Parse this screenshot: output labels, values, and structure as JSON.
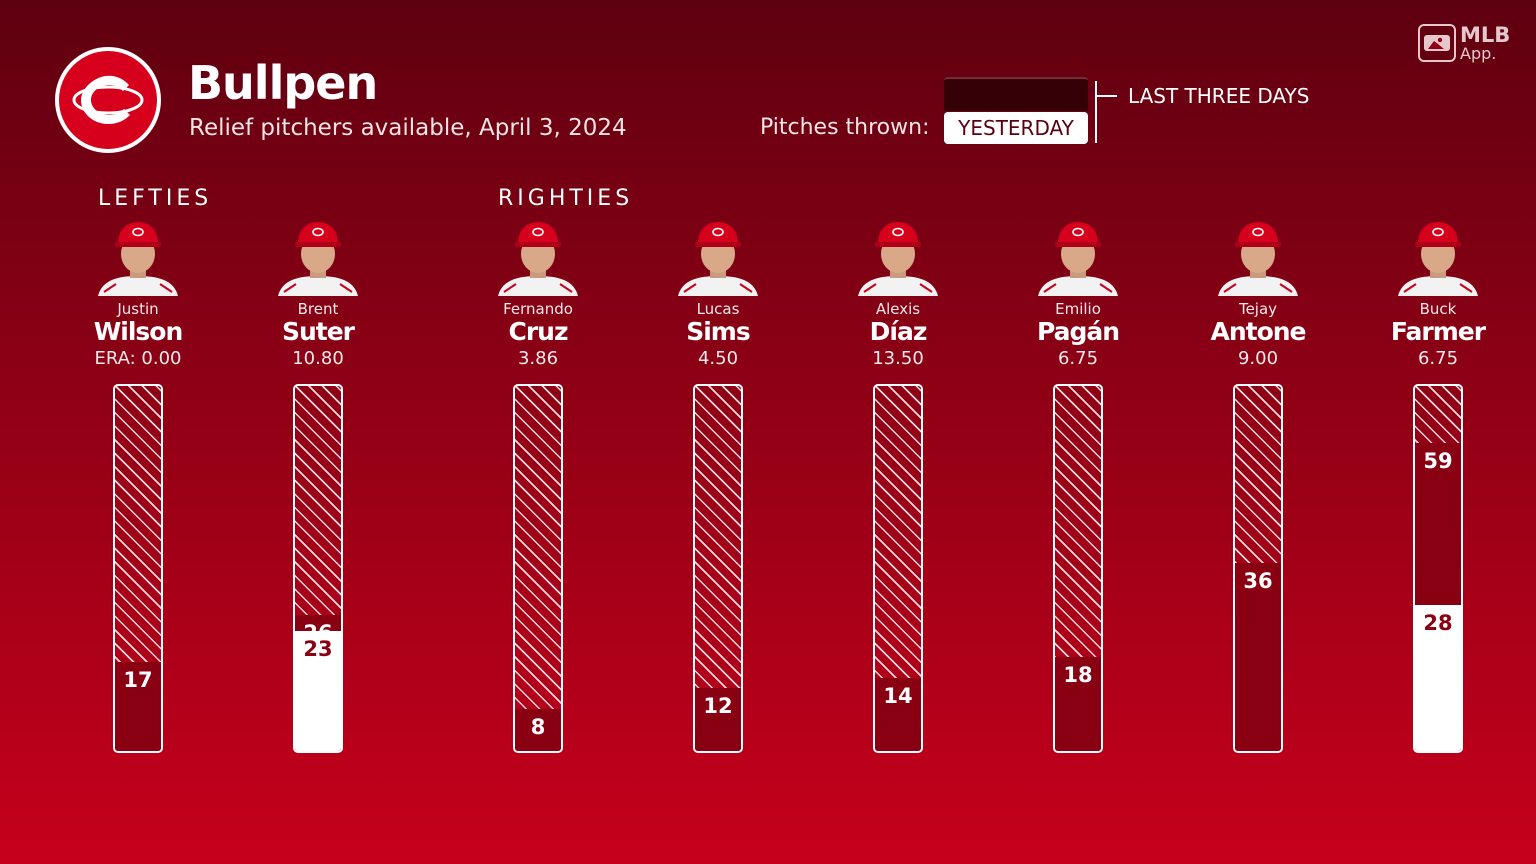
{
  "header": {
    "title": "Bullpen",
    "subtitle": "Relief pitchers available, April 3, 2024",
    "brand_line1": "MLB",
    "brand_line2": "App."
  },
  "toggle": {
    "label": "Pitches thrown:",
    "selected": "YESTERDAY",
    "other": "LAST THREE DAYS"
  },
  "groups": {
    "lefties": "LEFTIES",
    "righties": "RIGHTIES"
  },
  "colors": {
    "background_top": "#5e0010",
    "background_bottom": "#c6001c",
    "last_three_days_fill": "#8a0013",
    "yesterday_fill": "#ffffff",
    "team_red": "#d6001c"
  },
  "icons": {
    "team_logo": "reds-c-logo",
    "brand": "mlb-app-icon",
    "player": "player-headshot-icon"
  },
  "chart_data": {
    "type": "bar",
    "stacked": true,
    "y_scale_max_pitches": 70,
    "categories": [
      "Justin Wilson",
      "Brent Suter",
      "Fernando Cruz",
      "Lucas Sims",
      "Alexis Díaz",
      "Emilio Pagán",
      "Tejay Antone",
      "Buck Farmer"
    ],
    "series": [
      {
        "name": "YESTERDAY",
        "values": [
          0,
          23,
          0,
          0,
          0,
          0,
          0,
          28
        ]
      },
      {
        "name": "LAST THREE DAYS",
        "values": [
          17,
          26,
          8,
          12,
          14,
          18,
          36,
          59
        ]
      }
    ],
    "players": [
      {
        "group": "lefties",
        "first": "Justin",
        "last": "Wilson",
        "era": "ERA: 0.00",
        "last_three_days": 17,
        "yesterday": 0,
        "ltd_label": "17",
        "yest_label": ""
      },
      {
        "group": "lefties",
        "first": "Brent",
        "last": "Suter",
        "era": "10.80",
        "last_three_days": 26,
        "yesterday": 23,
        "ltd_label": "26",
        "yest_label": "23"
      },
      {
        "group": "righties",
        "first": "Fernando",
        "last": "Cruz",
        "era": "3.86",
        "last_three_days": 8,
        "yesterday": 0,
        "ltd_label": "8",
        "yest_label": ""
      },
      {
        "group": "righties",
        "first": "Lucas",
        "last": "Sims",
        "era": "4.50",
        "last_three_days": 12,
        "yesterday": 0,
        "ltd_label": "12",
        "yest_label": ""
      },
      {
        "group": "righties",
        "first": "Alexis",
        "last": "Díaz",
        "era": "13.50",
        "last_three_days": 14,
        "yesterday": 0,
        "ltd_label": "14",
        "yest_label": ""
      },
      {
        "group": "righties",
        "first": "Emilio",
        "last": "Pagán",
        "era": "6.75",
        "last_three_days": 18,
        "yesterday": 0,
        "ltd_label": "18",
        "yest_label": ""
      },
      {
        "group": "righties",
        "first": "Tejay",
        "last": "Antone",
        "era": "9.00",
        "last_three_days": 36,
        "yesterday": 0,
        "ltd_label": "36",
        "yest_label": ""
      },
      {
        "group": "righties",
        "first": "Buck",
        "last": "Farmer",
        "era": "6.75",
        "last_three_days": 59,
        "yesterday": 28,
        "ltd_label": "59",
        "yest_label": "28"
      }
    ]
  }
}
